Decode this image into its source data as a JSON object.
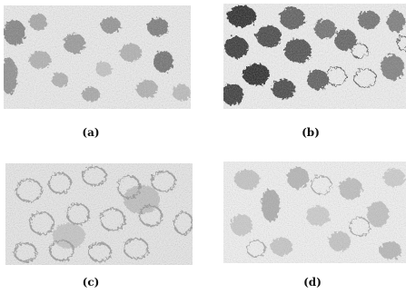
{
  "figure": {
    "panels": [
      {
        "label": "(a)",
        "stain_color": "#5a5a5a",
        "background": "#f2f2f2"
      },
      {
        "label": "(b)",
        "stain_color": "#222222",
        "background": "#f5f5f5"
      },
      {
        "label": "(c)",
        "stain_color": "#8a8a8a",
        "background": "#eeeeee"
      },
      {
        "label": "(d)",
        "stain_color": "#8a8a8a",
        "background": "#f7f7f7"
      }
    ]
  }
}
